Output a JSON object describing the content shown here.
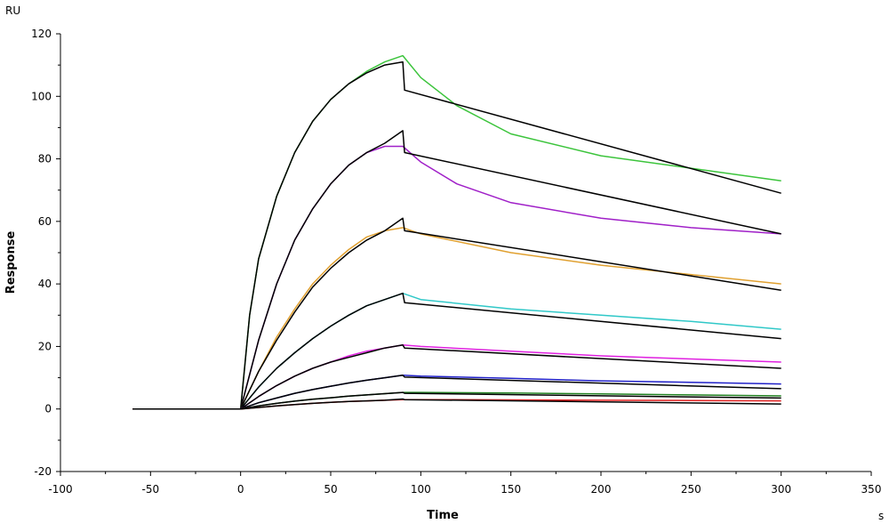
{
  "chart_data": {
    "type": "line",
    "xlabel": "Time",
    "ylabel": "Response",
    "x_unit": "s",
    "y_unit": "RU",
    "xlim": [
      -100,
      350
    ],
    "ylim": [
      -20,
      120
    ],
    "x_ticks": [
      "-100",
      "-50",
      "0",
      "50",
      "100",
      "150",
      "200",
      "250",
      "300",
      "350"
    ],
    "y_ticks": [
      "-20",
      "0",
      "20",
      "40",
      "60",
      "80",
      "100",
      "120"
    ],
    "legend": "none",
    "grid": false,
    "series": [
      {
        "color": "#3cc43c",
        "x": [
          -60,
          0,
          5,
          10,
          20,
          30,
          40,
          50,
          60,
          70,
          80,
          90,
          100,
          120,
          150,
          200,
          250,
          300
        ],
        "y": [
          0,
          0,
          30,
          48,
          68,
          82,
          92,
          99,
          104,
          108,
          111,
          113,
          106,
          97,
          88,
          81,
          77,
          73
        ]
      },
      {
        "color": "#000000",
        "x": [
          -60,
          0,
          5,
          10,
          20,
          30,
          40,
          50,
          60,
          70,
          80,
          90,
          91,
          300
        ],
        "y": [
          0,
          0,
          30,
          48,
          68,
          82,
          92,
          99,
          104,
          107.5,
          110,
          111,
          102,
          69
        ]
      },
      {
        "color": "#a020c8",
        "x": [
          -60,
          0,
          10,
          20,
          30,
          40,
          50,
          60,
          70,
          80,
          90,
          100,
          120,
          150,
          200,
          250,
          300
        ],
        "y": [
          0,
          0,
          22,
          40,
          54,
          64,
          72,
          78,
          82,
          84,
          84,
          79,
          72,
          66,
          61,
          58,
          56
        ]
      },
      {
        "color": "#000000",
        "x": [
          -60,
          0,
          10,
          20,
          30,
          40,
          50,
          60,
          70,
          80,
          90,
          91,
          300
        ],
        "y": [
          0,
          0,
          22,
          40,
          54,
          64,
          72,
          78,
          82,
          85,
          89,
          82,
          56
        ]
      },
      {
        "color": "#e0a030",
        "x": [
          -60,
          0,
          10,
          20,
          30,
          40,
          50,
          60,
          70,
          80,
          90,
          100,
          150,
          200,
          250,
          300
        ],
        "y": [
          0,
          0,
          12,
          23,
          32,
          40,
          46,
          51,
          55,
          57,
          58,
          56,
          50,
          46,
          43,
          40
        ]
      },
      {
        "color": "#000000",
        "x": [
          -60,
          0,
          10,
          20,
          30,
          40,
          50,
          60,
          70,
          80,
          90,
          91,
          300
        ],
        "y": [
          0,
          0,
          12,
          22,
          31,
          39,
          45,
          50,
          54,
          57,
          61,
          57,
          38
        ]
      },
      {
        "color": "#30c8c8",
        "x": [
          -60,
          0,
          10,
          20,
          30,
          40,
          50,
          60,
          70,
          80,
          90,
          100,
          150,
          200,
          250,
          300
        ],
        "y": [
          0,
          0,
          7,
          13,
          18,
          22.5,
          26.5,
          30,
          33,
          35,
          37,
          35,
          32,
          30,
          28,
          25.5
        ]
      },
      {
        "color": "#000000",
        "x": [
          -60,
          0,
          10,
          20,
          30,
          40,
          50,
          60,
          70,
          80,
          90,
          91,
          300
        ],
        "y": [
          0,
          0,
          7,
          13,
          18,
          22.5,
          26.5,
          30,
          33,
          35,
          37,
          34,
          22.5
        ]
      },
      {
        "color": "#e020e0",
        "x": [
          -60,
          0,
          10,
          20,
          30,
          40,
          50,
          60,
          70,
          80,
          90,
          100,
          150,
          200,
          250,
          300
        ],
        "y": [
          0,
          0,
          4,
          7.5,
          10.5,
          13,
          15,
          17,
          18.5,
          19.5,
          20.5,
          20,
          18.5,
          17,
          16,
          15
        ]
      },
      {
        "color": "#000000",
        "x": [
          -60,
          0,
          10,
          20,
          30,
          40,
          50,
          60,
          70,
          80,
          90,
          91,
          300
        ],
        "y": [
          0,
          0,
          4,
          7.5,
          10.5,
          13,
          15,
          16.5,
          18,
          19.5,
          20.5,
          19.5,
          13
        ]
      },
      {
        "color": "#2020c8",
        "x": [
          -60,
          0,
          10,
          20,
          30,
          40,
          50,
          60,
          70,
          80,
          90,
          100,
          150,
          200,
          250,
          300
        ],
        "y": [
          0,
          0,
          2,
          3.5,
          5,
          6.2,
          7.3,
          8.3,
          9.2,
          10,
          10.8,
          10.5,
          9.8,
          9,
          8.5,
          8
        ]
      },
      {
        "color": "#000000",
        "x": [
          -60,
          0,
          10,
          20,
          30,
          40,
          50,
          60,
          70,
          80,
          90,
          91,
          300
        ],
        "y": [
          0,
          0,
          2,
          3.5,
          5,
          6.2,
          7.3,
          8.3,
          9.2,
          10,
          10.8,
          10.2,
          6.5
        ]
      },
      {
        "color": "#208020",
        "x": [
          -60,
          0,
          10,
          20,
          30,
          40,
          50,
          60,
          70,
          80,
          90,
          100,
          150,
          200,
          250,
          300
        ],
        "y": [
          0,
          0,
          1,
          1.8,
          2.5,
          3.1,
          3.6,
          4.1,
          4.5,
          4.9,
          5.3,
          5.3,
          5.1,
          4.8,
          4.5,
          4.2
        ]
      },
      {
        "color": "#000000",
        "x": [
          -60,
          0,
          10,
          20,
          30,
          40,
          50,
          60,
          70,
          80,
          90,
          91,
          300
        ],
        "y": [
          0,
          0,
          1,
          1.8,
          2.5,
          3.1,
          3.6,
          4.1,
          4.5,
          4.9,
          5.3,
          5.0,
          3.5
        ]
      },
      {
        "color": "#e02020",
        "x": [
          -60,
          0,
          10,
          20,
          30,
          40,
          50,
          60,
          70,
          80,
          90,
          100,
          150,
          200,
          250,
          300
        ],
        "y": [
          0,
          0,
          0.5,
          1,
          1.4,
          1.8,
          2.1,
          2.4,
          2.6,
          2.8,
          3.0,
          3.0,
          2.9,
          2.8,
          2.7,
          2.6
        ]
      },
      {
        "color": "#000000",
        "x": [
          -60,
          0,
          10,
          20,
          30,
          40,
          50,
          60,
          70,
          80,
          90,
          91,
          300
        ],
        "y": [
          0,
          0,
          0.5,
          1,
          1.4,
          1.8,
          2.1,
          2.4,
          2.6,
          2.8,
          3.2,
          3.0,
          1.6
        ]
      }
    ]
  }
}
